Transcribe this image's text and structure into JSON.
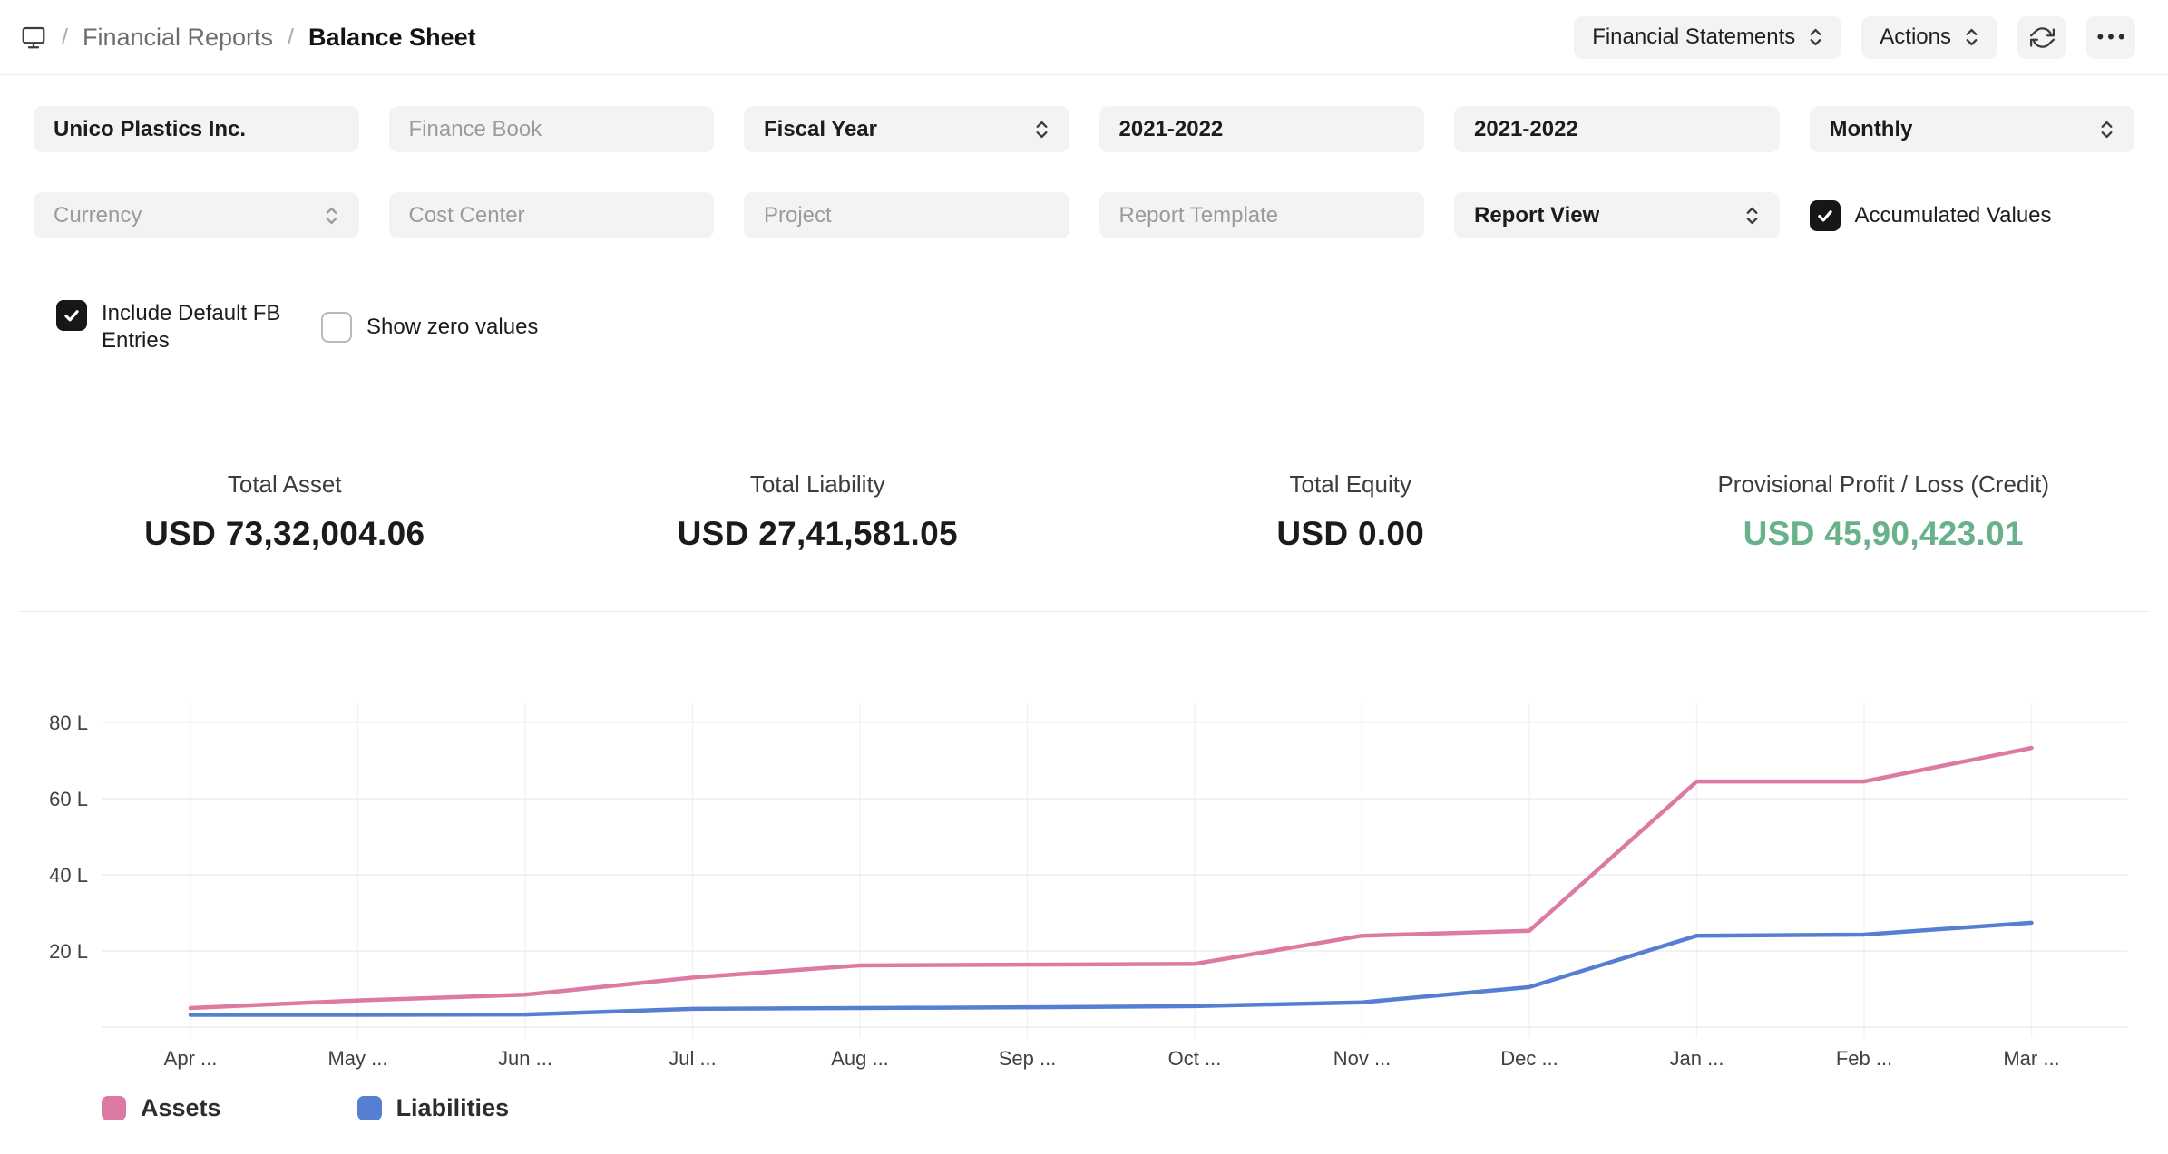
{
  "breadcrumb": {
    "separator": "/",
    "section": "Financial Reports",
    "page": "Balance Sheet"
  },
  "header_actions": {
    "report_switcher_label": "Financial Statements",
    "actions_label": "Actions",
    "more_icon": "•••"
  },
  "filters": {
    "row1": [
      {
        "value": "Unico Plastics Inc.",
        "type": "input"
      },
      {
        "placeholder": "Finance Book",
        "type": "input"
      },
      {
        "value": "Fiscal Year",
        "type": "select"
      },
      {
        "value": "2021-2022",
        "type": "input"
      },
      {
        "value": "2021-2022",
        "type": "input"
      },
      {
        "value": "Monthly",
        "type": "select"
      }
    ],
    "row2": [
      {
        "placeholder": "Currency",
        "type": "select"
      },
      {
        "placeholder": "Cost Center",
        "type": "input"
      },
      {
        "placeholder": "Project",
        "type": "input"
      },
      {
        "placeholder": "Report Template",
        "type": "input"
      },
      {
        "value": "Report View",
        "type": "select"
      }
    ],
    "checkboxes": [
      {
        "label": "Accumulated Values",
        "checked": true
      },
      {
        "label": "Include Default FB Entries",
        "checked": true
      },
      {
        "label": "Show zero values",
        "checked": false
      }
    ]
  },
  "summary": {
    "cards": [
      {
        "label": "Total Asset",
        "value": "USD 73,32,004.06",
        "color": "dark"
      },
      {
        "label": "Total Liability",
        "value": "USD 27,41,581.05",
        "color": "dark"
      },
      {
        "label": "Total Equity",
        "value": "USD 0.00",
        "color": "dark"
      },
      {
        "label": "Provisional Profit / Loss (Credit)",
        "value": "USD 45,90,423.01",
        "color": "green"
      }
    ]
  },
  "chart_data": {
    "type": "line",
    "categories": [
      "Apr ...",
      "May ...",
      "Jun ...",
      "Jul ...",
      "Aug ...",
      "Sep ...",
      "Oct ...",
      "Nov ...",
      "Dec ...",
      "Jan ...",
      "Feb ...",
      "Mar ..."
    ],
    "series": [
      {
        "name": "Assets",
        "color": "#dd7aa3",
        "values": [
          5,
          7,
          8.5,
          13,
          16.2,
          16.4,
          16.6,
          24,
          25.3,
          64.5,
          64.5,
          73.3
        ]
      },
      {
        "name": "Liabilities",
        "color": "#567fd3",
        "values": [
          3.2,
          3.2,
          3.3,
          4.8,
          5,
          5.2,
          5.5,
          6.5,
          10.5,
          24,
          24.3,
          27.4
        ]
      }
    ],
    "y_ticks": [
      {
        "value": 20,
        "label": "20 L"
      },
      {
        "value": 40,
        "label": "40 L"
      },
      {
        "value": 60,
        "label": "60 L"
      },
      {
        "value": 80,
        "label": "80 L"
      }
    ],
    "ylim": [
      0,
      88
    ],
    "grid": true,
    "legend_position": "bottom-left"
  },
  "colors": {
    "profit_green": "#68b18a",
    "assets_pink": "#dd7aa3",
    "liabilities_blue": "#567fd3",
    "pill_bg": "#f3f3f3"
  }
}
